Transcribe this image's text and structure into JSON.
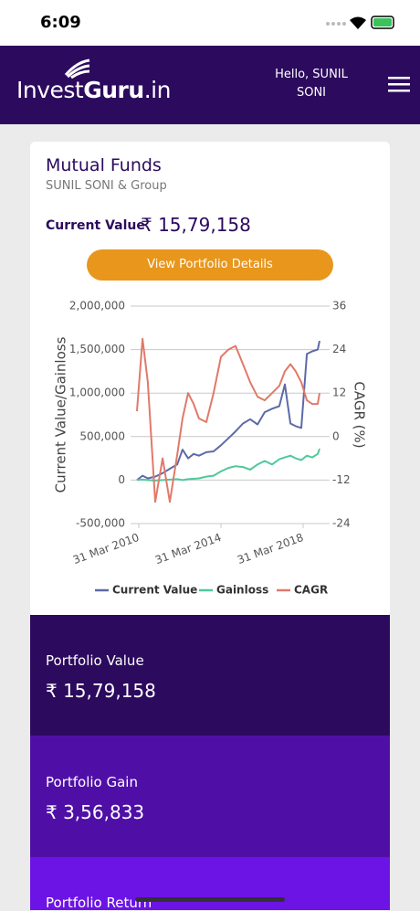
{
  "status_bar": {
    "time": "6:09"
  },
  "header": {
    "logo": {
      "part1": "Invest",
      "part2": "Guru",
      "part3": ".in"
    },
    "greeting": "Hello, SUNIL SONI"
  },
  "card": {
    "title": "Mutual Funds",
    "subtitle": "SUNIL SONI & Group",
    "current_value_label": "Current Value",
    "current_value": "₹ 15,79,158",
    "button": "View Portfolio Details"
  },
  "chart_data": {
    "type": "line",
    "x": [
      2010.16,
      2010.43,
      2010.69,
      2011.05,
      2011.41,
      2011.76,
      2012.12,
      2012.38,
      2012.65,
      2012.92,
      2013.18,
      2013.54,
      2013.89,
      2014.25,
      2014.61,
      2014.96,
      2015.32,
      2015.67,
      2016.03,
      2016.38,
      2016.74,
      2017.09,
      2017.36,
      2017.63,
      2017.89,
      2018.16,
      2018.43,
      2018.69,
      2018.96,
      2019.05
    ],
    "xlim": [
      2010.16,
      2019.05
    ],
    "xticks": [
      {
        "value": 2010.25,
        "label": "31 Mar 2010"
      },
      {
        "value": 2014.25,
        "label": "31 Mar 2014"
      },
      {
        "value": 2018.25,
        "label": "31 Mar 2018"
      }
    ],
    "ylim": [
      -500000,
      2000000
    ],
    "yticks": [
      {
        "value": -500000,
        "label": "-500,000"
      },
      0,
      {
        "value": 500000,
        "label": "500,000"
      },
      {
        "value": 1000000,
        "label": "1,000,000"
      },
      {
        "value": 1500000,
        "label": "1,500,000"
      },
      {
        "value": 2000000,
        "label": "2,000,000"
      }
    ],
    "y2lim": [
      -24,
      36
    ],
    "y2ticks": [
      -24,
      -12,
      0,
      12,
      24,
      36
    ],
    "y_label": "Current Value/Gainloss",
    "y2_label": "CAGR (%)",
    "grid": true,
    "series": [
      {
        "name": "Current Value",
        "color": "#5d6aa8",
        "values": [
          0,
          50000,
          20000,
          40000,
          80000,
          130000,
          180000,
          350000,
          250000,
          300000,
          280000,
          320000,
          330000,
          400000,
          480000,
          560000,
          650000,
          700000,
          640000,
          780000,
          820000,
          850000,
          1100000,
          650000,
          620000,
          600000,
          1450000,
          1480000,
          1500000,
          1600000
        ]
      },
      {
        "name": "Gainloss",
        "color": "#4fc99a",
        "values": [
          0,
          5000,
          0,
          -5000,
          0,
          5000,
          10000,
          0,
          10000,
          15000,
          20000,
          40000,
          50000,
          100000,
          140000,
          160000,
          150000,
          120000,
          180000,
          220000,
          180000,
          240000,
          260000,
          280000,
          250000,
          230000,
          280000,
          260000,
          300000,
          360000
        ]
      },
      {
        "name": "CAGR",
        "color": "#e07a6a",
        "axis": "y2",
        "values": [
          7,
          27,
          15,
          -18,
          -6,
          -18,
          -5,
          5,
          12,
          9,
          5,
          4,
          12,
          22,
          24,
          25,
          20,
          15,
          11,
          10,
          12,
          14,
          18,
          20,
          18,
          15,
          10,
          9,
          9,
          12
        ]
      }
    ]
  },
  "panels": [
    {
      "label": "Portfolio Value",
      "value": "₹ 15,79,158"
    },
    {
      "label": "Portfolio Gain",
      "value": "₹ 3,56,833"
    },
    {
      "label": "Portfolio Return"
    }
  ]
}
